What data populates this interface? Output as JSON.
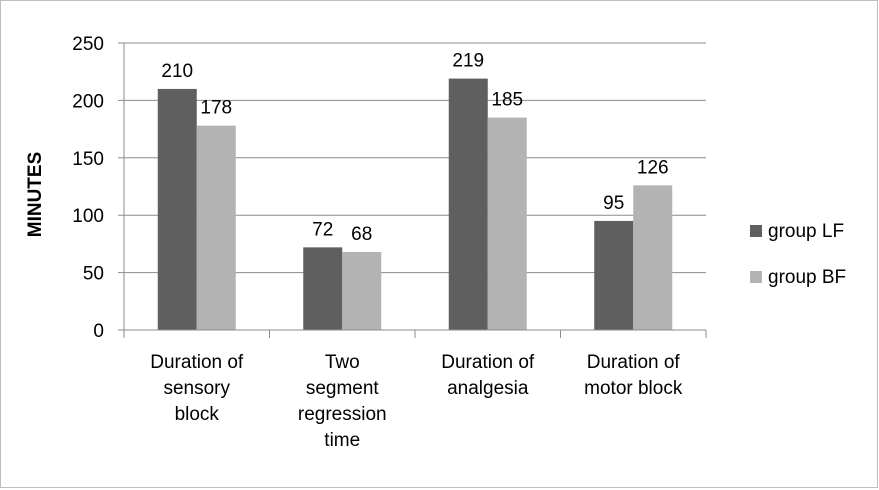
{
  "chart_data": {
    "type": "bar",
    "title": "",
    "xlabel": "",
    "ylabel": "MINUTES",
    "ylim": [
      0,
      250
    ],
    "yticks": [
      0,
      50,
      100,
      150,
      200,
      250
    ],
    "grid": true,
    "legend_position": "right",
    "categories": [
      [
        "Duration of",
        "sensory",
        "block"
      ],
      [
        "Two",
        "segment",
        "regression",
        "time"
      ],
      [
        "Duration of",
        "analgesia"
      ],
      [
        "Duration of",
        "motor block"
      ]
    ],
    "series": [
      {
        "name": "group LF",
        "values": [
          210,
          72,
          219,
          95
        ],
        "color": "#5f5f5f"
      },
      {
        "name": "group BF",
        "values": [
          178,
          68,
          185,
          126
        ],
        "color": "#b3b3b3"
      }
    ]
  }
}
